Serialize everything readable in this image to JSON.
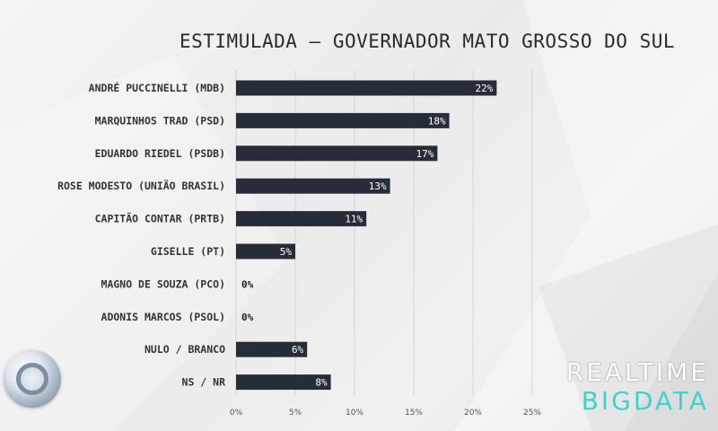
{
  "chart_data": {
    "type": "bar",
    "orientation": "horizontal",
    "title": "ESTIMULADA – GOVERNADOR MATO GROSSO DO SUL",
    "categories": [
      "ANDRÉ PUCCINELLI (MDB)",
      "MARQUINHOS TRAD (PSD)",
      "EDUARDO RIEDEL (PSDB)",
      "ROSE MODESTO (UNIÃO BRASIL)",
      "CAPITÃO CONTAR (PRTB)",
      "GISELLE (PT)",
      "MAGNO DE SOUZA (PCO)",
      "ADONIS MARCOS (PSOL)",
      "NULO / BRANCO",
      "NS / NR"
    ],
    "values": [
      22,
      18,
      17,
      13,
      11,
      5,
      0,
      0,
      6,
      8
    ],
    "value_labels": [
      "22%",
      "18%",
      "17%",
      "13%",
      "11%",
      "5%",
      "0%",
      "0%",
      "6%",
      "8%"
    ],
    "xticks": [
      "0%",
      "5%",
      "10%",
      "15%",
      "20%",
      "25%"
    ],
    "xlim": [
      0,
      25
    ],
    "grid": true,
    "colors": {
      "bar": "#272d38",
      "grid": "#d5d5d5",
      "label": "#333333",
      "value_in": "#ffffff",
      "value_out": "#222222"
    }
  },
  "brand": {
    "top": "REALTIME",
    "bottom": "BIGDATA",
    "logo_icon": "record-tv-logo-icon"
  }
}
